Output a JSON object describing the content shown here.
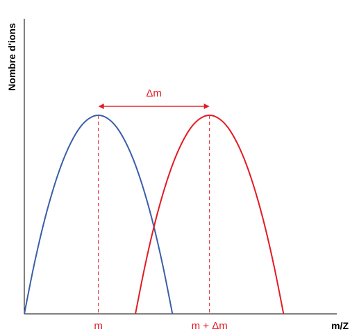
{
  "colors": {
    "series1": "#3a5ea8",
    "series2": "#e31b23",
    "axis": "#000000",
    "annotation": "#e31b23"
  },
  "chart_data": {
    "type": "line",
    "title": "",
    "xlabel": "m/Z",
    "ylabel": "Nombre d'ions",
    "xlim": [
      0,
      13.5
    ],
    "ylim": [
      0,
      1.0
    ],
    "grid": false,
    "legend": "none",
    "x_tick_labels": [
      {
        "x": 3.2,
        "label": "m"
      },
      {
        "x": 8.0,
        "label": "m + Δm"
      }
    ],
    "series": [
      {
        "color": "#3a5ea8",
        "x": [
          0.0,
          0.4,
          0.8,
          1.2,
          1.6,
          2.0,
          2.4,
          2.8,
          3.2,
          3.6,
          4.0,
          4.4,
          4.8,
          5.2,
          5.6,
          6.0,
          6.4
        ],
        "y": [
          0.0,
          0.234,
          0.438,
          0.609,
          0.75,
          0.859,
          0.938,
          0.984,
          1.0,
          0.984,
          0.938,
          0.859,
          0.75,
          0.609,
          0.438,
          0.234,
          0.0
        ]
      },
      {
        "color": "#e31b23",
        "x": [
          4.8,
          5.2,
          5.6,
          6.0,
          6.4,
          6.8,
          7.2,
          7.6,
          8.0,
          8.4,
          8.8,
          9.2,
          9.6,
          10.0,
          10.4,
          10.8,
          11.2
        ],
        "y": [
          0.0,
          0.234,
          0.438,
          0.609,
          0.75,
          0.859,
          0.938,
          0.984,
          1.0,
          0.984,
          0.938,
          0.859,
          0.75,
          0.609,
          0.438,
          0.234,
          0.0
        ]
      }
    ],
    "annotations": [
      {
        "type": "vline",
        "x": 3.2,
        "y_top": 1.0,
        "style": "dashed",
        "color": "#e31b23"
      },
      {
        "type": "vline",
        "x": 8.0,
        "y_top": 1.0,
        "style": "dashed",
        "color": "#e31b23"
      },
      {
        "type": "double-arrow",
        "x_start": 3.2,
        "x_end": 8.0,
        "y": 1.045,
        "color": "#e31b23",
        "label": "Δm"
      }
    ]
  }
}
